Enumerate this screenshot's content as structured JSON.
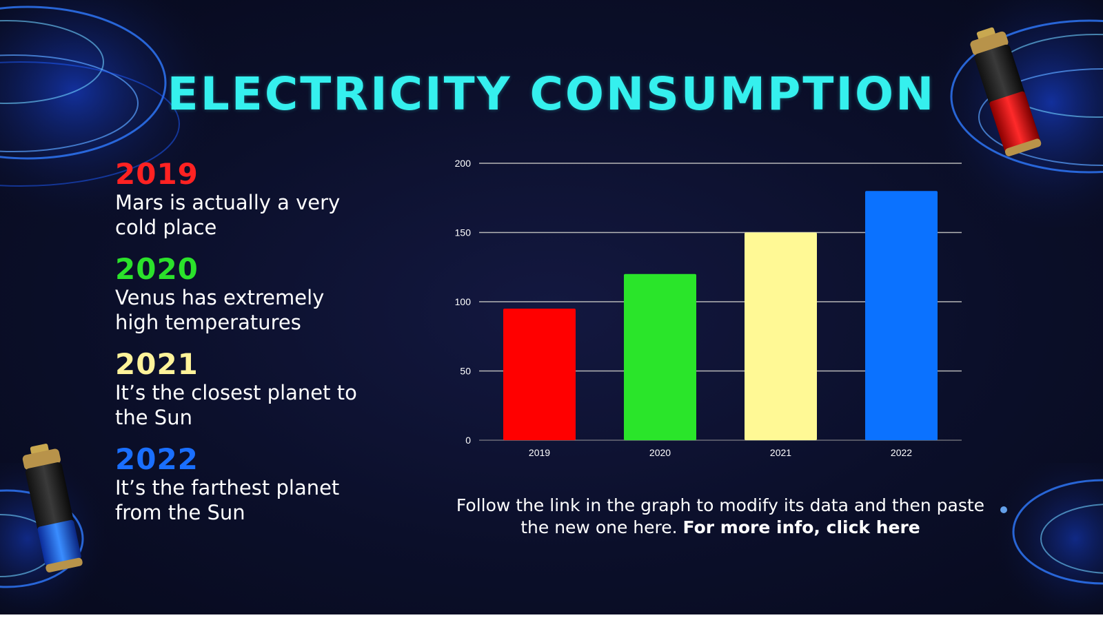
{
  "slide": {
    "title": "ELECTRICITY CONSUMPTION",
    "title_color": "#35f0ee",
    "background_color": "#0b0f2a"
  },
  "years": [
    {
      "year": "2019",
      "description": "Mars is actually a very cold place",
      "color": "#ff2222"
    },
    {
      "year": "2020",
      "description": "Venus has extremely high temperatures",
      "color": "#2be22b"
    },
    {
      "year": "2021",
      "description": "It’s the closest planet to the Sun",
      "color": "#fff39a"
    },
    {
      "year": "2022",
      "description": "It’s the farthest planet from the Sun",
      "color": "#1a6fff"
    }
  ],
  "chart_data": {
    "type": "bar",
    "categories": [
      "2019",
      "2020",
      "2021",
      "2022"
    ],
    "values": [
      95,
      120,
      150,
      180
    ],
    "colors": [
      "#ff0000",
      "#2ae52a",
      "#fff995",
      "#0b72ff"
    ],
    "ylim": [
      0,
      200
    ],
    "yticks": [
      0,
      50,
      100,
      150,
      200
    ],
    "grid": true,
    "legend": "none"
  },
  "footnote": {
    "text": "Follow the link in the graph to modify its data and then paste the new one here.",
    "link_text": "For more info, click here"
  },
  "icons": [
    "battery-icon-low",
    "battery-icon-full",
    "light-swirl"
  ]
}
